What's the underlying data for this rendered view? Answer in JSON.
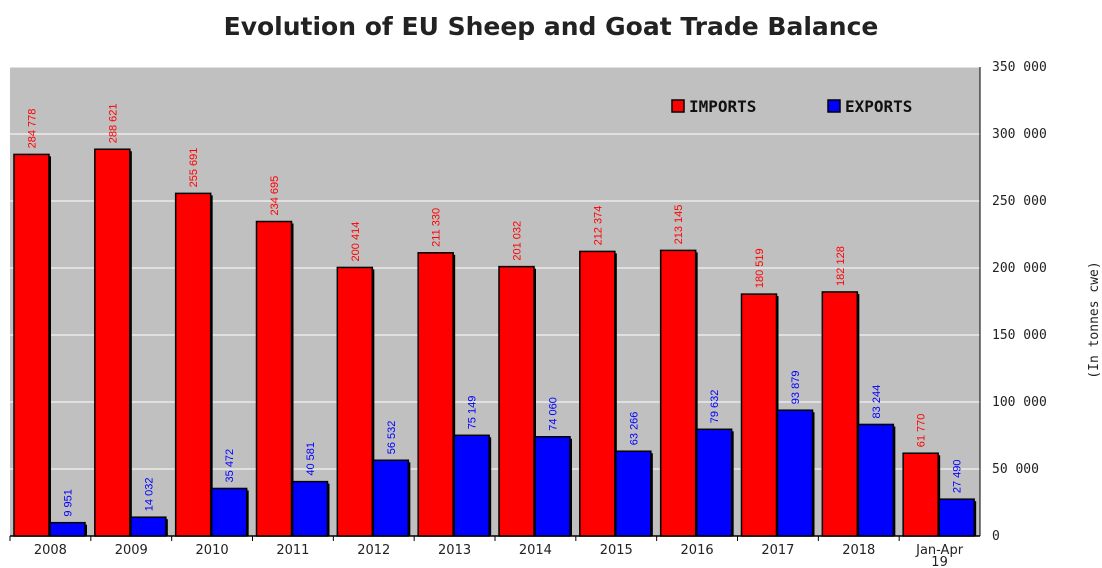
{
  "chart_data": {
    "type": "bar",
    "title": "Evolution of EU Sheep and Goat Trade Balance",
    "ylabel": "(In tonnes cwe)",
    "xlabel": "",
    "ylim": [
      0,
      350000
    ],
    "yticks": [
      0,
      50000,
      100000,
      150000,
      200000,
      250000,
      300000,
      350000
    ],
    "ytick_labels": [
      "0",
      "50 000",
      "100 000",
      "150 000",
      "200 000",
      "250 000",
      "300 000",
      "350 000"
    ],
    "grid": true,
    "legend_position": "top-right",
    "categories": [
      "2008",
      "2009",
      "2010",
      "2011",
      "2012",
      "2013",
      "2014",
      "2015",
      "2016",
      "2017",
      "2018",
      "Jan-Apr\n19"
    ],
    "series": [
      {
        "name": "IMPORTS",
        "color": "#ff0000",
        "label_color": "#ff0000",
        "values": [
          284778,
          288621,
          255691,
          234695,
          200414,
          211330,
          201032,
          212374,
          213145,
          180519,
          182128,
          61770
        ],
        "labels": [
          "284 778",
          "288 621",
          "255 691",
          "234 695",
          "200 414",
          "211 330",
          "201 032",
          "212 374",
          "213 145",
          "180 519",
          "182 128",
          "61 770"
        ]
      },
      {
        "name": "EXPORTS",
        "color": "#0000ff",
        "label_color": "#0000ff",
        "values": [
          9951,
          14032,
          35472,
          40581,
          56532,
          75149,
          74060,
          63266,
          79632,
          93879,
          83244,
          27490
        ],
        "labels": [
          "9 951",
          "14 032",
          "35 472",
          "40 581",
          "56 532",
          "75 149",
          "74 060",
          "63 266",
          "79 632",
          "93 879",
          "83 244",
          "27 490"
        ]
      }
    ],
    "colors": {
      "plot_background": "#c0c0c0",
      "gridline": "#ffffff"
    }
  }
}
